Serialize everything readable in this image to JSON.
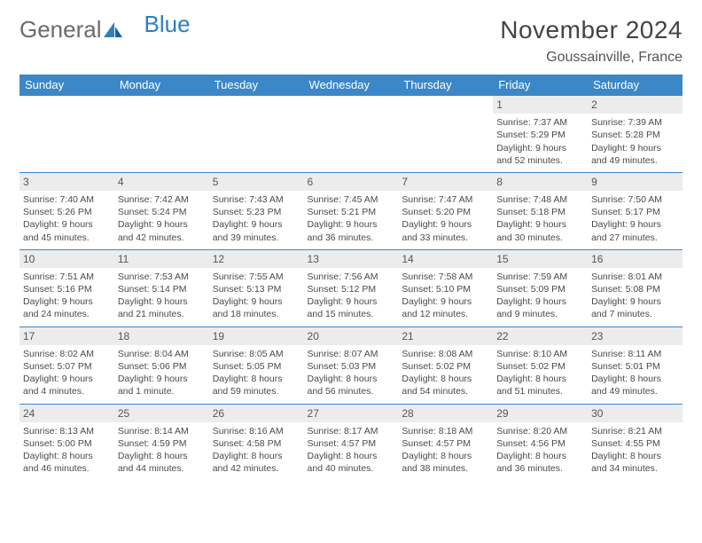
{
  "brand": {
    "part1": "General",
    "part2": "Blue"
  },
  "title": "November 2024",
  "location": "Goussainville, France",
  "colors": {
    "header_bg": "#3b87c8",
    "header_text": "#ffffff",
    "border": "#3b87c8",
    "daynum_bg": "#ececec",
    "text": "#4a4a4a",
    "title_color": "#444444",
    "brand_gray": "#6b6b6b",
    "brand_blue": "#2f7ec0",
    "page_bg": "#ffffff"
  },
  "layout": {
    "cols": 7,
    "rows": 5,
    "cell_font_size": 10.5,
    "header_font_size": 13,
    "title_font_size": 28,
    "location_font_size": 16
  },
  "day_headers": [
    "Sunday",
    "Monday",
    "Tuesday",
    "Wednesday",
    "Thursday",
    "Friday",
    "Saturday"
  ],
  "weeks": [
    [
      null,
      null,
      null,
      null,
      null,
      {
        "n": "1",
        "sr": "Sunrise: 7:37 AM",
        "ss": "Sunset: 5:29 PM",
        "dl1": "Daylight: 9 hours",
        "dl2": "and 52 minutes."
      },
      {
        "n": "2",
        "sr": "Sunrise: 7:39 AM",
        "ss": "Sunset: 5:28 PM",
        "dl1": "Daylight: 9 hours",
        "dl2": "and 49 minutes."
      }
    ],
    [
      {
        "n": "3",
        "sr": "Sunrise: 7:40 AM",
        "ss": "Sunset: 5:26 PM",
        "dl1": "Daylight: 9 hours",
        "dl2": "and 45 minutes."
      },
      {
        "n": "4",
        "sr": "Sunrise: 7:42 AM",
        "ss": "Sunset: 5:24 PM",
        "dl1": "Daylight: 9 hours",
        "dl2": "and 42 minutes."
      },
      {
        "n": "5",
        "sr": "Sunrise: 7:43 AM",
        "ss": "Sunset: 5:23 PM",
        "dl1": "Daylight: 9 hours",
        "dl2": "and 39 minutes."
      },
      {
        "n": "6",
        "sr": "Sunrise: 7:45 AM",
        "ss": "Sunset: 5:21 PM",
        "dl1": "Daylight: 9 hours",
        "dl2": "and 36 minutes."
      },
      {
        "n": "7",
        "sr": "Sunrise: 7:47 AM",
        "ss": "Sunset: 5:20 PM",
        "dl1": "Daylight: 9 hours",
        "dl2": "and 33 minutes."
      },
      {
        "n": "8",
        "sr": "Sunrise: 7:48 AM",
        "ss": "Sunset: 5:18 PM",
        "dl1": "Daylight: 9 hours",
        "dl2": "and 30 minutes."
      },
      {
        "n": "9",
        "sr": "Sunrise: 7:50 AM",
        "ss": "Sunset: 5:17 PM",
        "dl1": "Daylight: 9 hours",
        "dl2": "and 27 minutes."
      }
    ],
    [
      {
        "n": "10",
        "sr": "Sunrise: 7:51 AM",
        "ss": "Sunset: 5:16 PM",
        "dl1": "Daylight: 9 hours",
        "dl2": "and 24 minutes."
      },
      {
        "n": "11",
        "sr": "Sunrise: 7:53 AM",
        "ss": "Sunset: 5:14 PM",
        "dl1": "Daylight: 9 hours",
        "dl2": "and 21 minutes."
      },
      {
        "n": "12",
        "sr": "Sunrise: 7:55 AM",
        "ss": "Sunset: 5:13 PM",
        "dl1": "Daylight: 9 hours",
        "dl2": "and 18 minutes."
      },
      {
        "n": "13",
        "sr": "Sunrise: 7:56 AM",
        "ss": "Sunset: 5:12 PM",
        "dl1": "Daylight: 9 hours",
        "dl2": "and 15 minutes."
      },
      {
        "n": "14",
        "sr": "Sunrise: 7:58 AM",
        "ss": "Sunset: 5:10 PM",
        "dl1": "Daylight: 9 hours",
        "dl2": "and 12 minutes."
      },
      {
        "n": "15",
        "sr": "Sunrise: 7:59 AM",
        "ss": "Sunset: 5:09 PM",
        "dl1": "Daylight: 9 hours",
        "dl2": "and 9 minutes."
      },
      {
        "n": "16",
        "sr": "Sunrise: 8:01 AM",
        "ss": "Sunset: 5:08 PM",
        "dl1": "Daylight: 9 hours",
        "dl2": "and 7 minutes."
      }
    ],
    [
      {
        "n": "17",
        "sr": "Sunrise: 8:02 AM",
        "ss": "Sunset: 5:07 PM",
        "dl1": "Daylight: 9 hours",
        "dl2": "and 4 minutes."
      },
      {
        "n": "18",
        "sr": "Sunrise: 8:04 AM",
        "ss": "Sunset: 5:06 PM",
        "dl1": "Daylight: 9 hours",
        "dl2": "and 1 minute."
      },
      {
        "n": "19",
        "sr": "Sunrise: 8:05 AM",
        "ss": "Sunset: 5:05 PM",
        "dl1": "Daylight: 8 hours",
        "dl2": "and 59 minutes."
      },
      {
        "n": "20",
        "sr": "Sunrise: 8:07 AM",
        "ss": "Sunset: 5:03 PM",
        "dl1": "Daylight: 8 hours",
        "dl2": "and 56 minutes."
      },
      {
        "n": "21",
        "sr": "Sunrise: 8:08 AM",
        "ss": "Sunset: 5:02 PM",
        "dl1": "Daylight: 8 hours",
        "dl2": "and 54 minutes."
      },
      {
        "n": "22",
        "sr": "Sunrise: 8:10 AM",
        "ss": "Sunset: 5:02 PM",
        "dl1": "Daylight: 8 hours",
        "dl2": "and 51 minutes."
      },
      {
        "n": "23",
        "sr": "Sunrise: 8:11 AM",
        "ss": "Sunset: 5:01 PM",
        "dl1": "Daylight: 8 hours",
        "dl2": "and 49 minutes."
      }
    ],
    [
      {
        "n": "24",
        "sr": "Sunrise: 8:13 AM",
        "ss": "Sunset: 5:00 PM",
        "dl1": "Daylight: 8 hours",
        "dl2": "and 46 minutes."
      },
      {
        "n": "25",
        "sr": "Sunrise: 8:14 AM",
        "ss": "Sunset: 4:59 PM",
        "dl1": "Daylight: 8 hours",
        "dl2": "and 44 minutes."
      },
      {
        "n": "26",
        "sr": "Sunrise: 8:16 AM",
        "ss": "Sunset: 4:58 PM",
        "dl1": "Daylight: 8 hours",
        "dl2": "and 42 minutes."
      },
      {
        "n": "27",
        "sr": "Sunrise: 8:17 AM",
        "ss": "Sunset: 4:57 PM",
        "dl1": "Daylight: 8 hours",
        "dl2": "and 40 minutes."
      },
      {
        "n": "28",
        "sr": "Sunrise: 8:18 AM",
        "ss": "Sunset: 4:57 PM",
        "dl1": "Daylight: 8 hours",
        "dl2": "and 38 minutes."
      },
      {
        "n": "29",
        "sr": "Sunrise: 8:20 AM",
        "ss": "Sunset: 4:56 PM",
        "dl1": "Daylight: 8 hours",
        "dl2": "and 36 minutes."
      },
      {
        "n": "30",
        "sr": "Sunrise: 8:21 AM",
        "ss": "Sunset: 4:55 PM",
        "dl1": "Daylight: 8 hours",
        "dl2": "and 34 minutes."
      }
    ]
  ]
}
